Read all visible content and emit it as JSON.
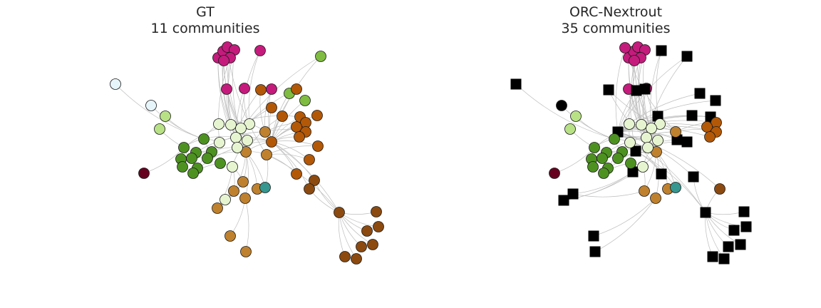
{
  "colors": {
    "edge": "#bdbdbd",
    "outline": "#1a1a1a",
    "magenta": "#c51b7d",
    "pale_cyan": "#e6f5f9",
    "light_green": "#b8e186",
    "mid_green": "#7fbc41",
    "dark_green": "#4d9221",
    "cream": "#e6f5d0",
    "orange": "#b35806",
    "tan": "#bf812d",
    "brown": "#8c4a10",
    "teal": "#35978f",
    "maroon": "#67001f",
    "black": "#000000"
  },
  "panels": [
    {
      "id": "gt",
      "title_line1": "GT",
      "title_line2": "11 communities"
    },
    {
      "id": "orc",
      "title_line1": "ORC-Nextrout",
      "title_line2": "35 communities"
    }
  ]
}
